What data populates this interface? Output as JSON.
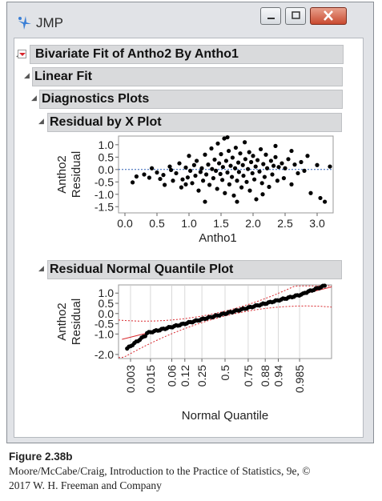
{
  "window": {
    "title": "JMP"
  },
  "sections": {
    "bivariate": "Bivariate Fit of Antho2 By Antho1",
    "linear_fit": "Linear Fit",
    "diagnostics": "Diagnostics Plots",
    "residual_by_x": "Residual by X Plot",
    "normal_quantile": "Residual Normal Quantile Plot"
  },
  "colors": {
    "point": "#000000",
    "reference_line": "#2b5fb4",
    "fit_line": "#d8262c"
  },
  "chart_data": [
    {
      "type": "scatter",
      "title": "Residual by X Plot",
      "xlabel": "Antho1",
      "ylabel": "Antho2\nResidual",
      "xlim": [
        -0.1,
        3.25
      ],
      "ylim": [
        -1.75,
        1.35
      ],
      "xticks": [
        "0.0",
        "0.5",
        "1.0",
        "1.5",
        "2.0",
        "2.5",
        "3.0"
      ],
      "yticks": [
        "1.0",
        "0.5",
        "0.0",
        "-0.5",
        "-1.0",
        "-1.5"
      ],
      "reference_line_y": 0,
      "points": [
        [
          0.12,
          -0.52
        ],
        [
          0.18,
          -0.28
        ],
        [
          0.3,
          -0.2
        ],
        [
          0.38,
          -0.33
        ],
        [
          0.42,
          0.05
        ],
        [
          0.5,
          -0.12
        ],
        [
          0.55,
          -0.38
        ],
        [
          0.6,
          -0.22
        ],
        [
          0.62,
          -0.62
        ],
        [
          0.7,
          0.12
        ],
        [
          0.72,
          -0.02
        ],
        [
          0.75,
          -0.45
        ],
        [
          0.8,
          -0.15
        ],
        [
          0.85,
          0.25
        ],
        [
          0.88,
          -0.72
        ],
        [
          0.9,
          -0.4
        ],
        [
          0.95,
          0.08
        ],
        [
          0.98,
          -0.32
        ],
        [
          1.0,
          0.55
        ],
        [
          1.02,
          -0.05
        ],
        [
          1.05,
          -0.55
        ],
        [
          1.08,
          0.18
        ],
        [
          1.1,
          -0.25
        ],
        [
          1.12,
          0.35
        ],
        [
          1.15,
          -0.85
        ],
        [
          1.18,
          -0.1
        ],
        [
          1.2,
          0.05
        ],
        [
          1.22,
          -0.45
        ],
        [
          1.25,
          0.6
        ],
        [
          1.27,
          -0.2
        ],
        [
          1.3,
          0.2
        ],
        [
          1.32,
          -0.62
        ],
        [
          1.35,
          0.85
        ],
        [
          1.36,
          0.02
        ],
        [
          1.38,
          -0.35
        ],
        [
          1.4,
          0.4
        ],
        [
          1.42,
          -0.05
        ],
        [
          1.44,
          -0.78
        ],
        [
          1.45,
          1.05
        ],
        [
          1.47,
          0.25
        ],
        [
          1.49,
          -0.18
        ],
        [
          1.5,
          0.62
        ],
        [
          1.52,
          -0.42
        ],
        [
          1.53,
          0.1
        ],
        [
          1.55,
          1.25
        ],
        [
          1.56,
          -0.95
        ],
        [
          1.58,
          0.35
        ],
        [
          1.6,
          -0.12
        ],
        [
          1.62,
          0.75
        ],
        [
          1.63,
          -0.6
        ],
        [
          1.65,
          0.15
        ],
        [
          1.67,
          -0.3
        ],
        [
          1.68,
          0.48
        ],
        [
          1.7,
          -1.05
        ],
        [
          1.72,
          0.05
        ],
        [
          1.73,
          0.88
        ],
        [
          1.75,
          -0.45
        ],
        [
          1.77,
          0.28
        ],
        [
          1.78,
          -0.1
        ],
        [
          1.8,
          0.65
        ],
        [
          1.82,
          -0.72
        ],
        [
          1.84,
          0.18
        ],
        [
          1.85,
          -0.25
        ],
        [
          1.87,
          1.1
        ],
        [
          1.88,
          0.42
        ],
        [
          1.9,
          -0.5
        ],
        [
          1.92,
          0.02
        ],
        [
          1.94,
          0.7
        ],
        [
          1.95,
          -0.85
        ],
        [
          1.97,
          0.3
        ],
        [
          1.99,
          -0.15
        ],
        [
          2.0,
          0.55
        ],
        [
          2.02,
          -0.4
        ],
        [
          2.04,
          0.12
        ],
        [
          2.05,
          -1.2
        ],
        [
          2.07,
          0.38
        ],
        [
          2.1,
          -0.08
        ],
        [
          2.12,
          0.82
        ],
        [
          2.14,
          -0.55
        ],
        [
          2.16,
          0.22
        ],
        [
          2.18,
          -0.3
        ],
        [
          2.2,
          0.6
        ],
        [
          2.22,
          0.05
        ],
        [
          2.25,
          -0.7
        ],
        [
          2.28,
          0.35
        ],
        [
          2.3,
          -0.2
        ],
        [
          2.32,
          0.15
        ],
        [
          2.35,
          0.5
        ],
        [
          2.38,
          -0.45
        ],
        [
          2.4,
          0.1
        ],
        [
          2.45,
          0.25
        ],
        [
          2.48,
          -0.35
        ],
        [
          2.5,
          0.05
        ],
        [
          2.55,
          0.42
        ],
        [
          2.6,
          -0.6
        ],
        [
          2.65,
          0.2
        ],
        [
          2.7,
          -0.15
        ],
        [
          2.75,
          0.3
        ],
        [
          2.8,
          -0.05
        ],
        [
          2.85,
          0.55
        ],
        [
          2.9,
          -0.95
        ],
        [
          3.0,
          0.18
        ],
        [
          3.05,
          -1.15
        ],
        [
          3.12,
          -1.3
        ],
        [
          3.2,
          0.12
        ],
        [
          1.25,
          -1.3
        ],
        [
          1.6,
          1.3
        ],
        [
          0.95,
          -0.6
        ],
        [
          2.15,
          -1.0
        ],
        [
          2.6,
          0.75
        ],
        [
          1.75,
          -1.3
        ],
        [
          2.35,
          0.95
        ]
      ]
    },
    {
      "type": "scatter",
      "title": "Residual Normal Quantile Plot",
      "xlabel": "Normal Quantile",
      "ylabel": "Antho2\nResidual",
      "ylim": [
        -2.2,
        1.4
      ],
      "xticks": [
        "0.003",
        "0.015",
        "0.06",
        "0.12",
        "0.25",
        "0.5",
        "0.75",
        "0.88",
        "0.94",
        "0.985"
      ],
      "yticks": [
        "1.0",
        "0.5",
        "0.0",
        "-0.5",
        "-1.0",
        "-2.0"
      ],
      "series": [
        {
          "name": "",
          "description_only": true
        }
      ],
      "quantile_z_range": [
        -3.1,
        3.1
      ],
      "residual_range": [
        -1.6,
        1.35
      ]
    }
  ],
  "caption": {
    "figure": "Figure 2.38b",
    "line1": "Moore/McCabe/Craig, Introduction to the Practice of Statistics, 9e, ©",
    "line2": "2017 W. H. Freeman and Company"
  }
}
